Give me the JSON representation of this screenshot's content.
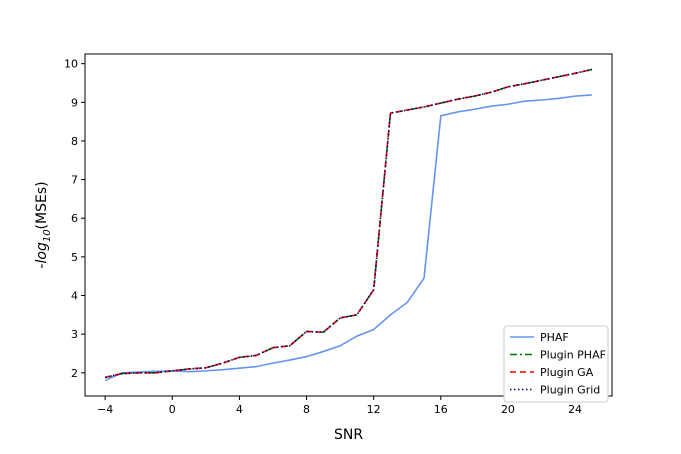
{
  "chart_data": {
    "type": "line",
    "title": "",
    "xlabel": "SNR",
    "ylabel_prefix": "-",
    "ylabel_log": "log",
    "ylabel_sub": "10",
    "ylabel_suffix": "(MSEs)",
    "xlim": [
      -5.2,
      26.2
    ],
    "ylim": [
      1.4,
      10.25
    ],
    "xticks": [
      -4,
      0,
      4,
      8,
      12,
      16,
      20,
      24
    ],
    "xtick_labels": [
      "−4",
      "0",
      "4",
      "8",
      "12",
      "16",
      "20",
      "24"
    ],
    "yticks": [
      2,
      3,
      4,
      5,
      6,
      7,
      8,
      9,
      10
    ],
    "ytick_labels": [
      "2",
      "3",
      "4",
      "5",
      "6",
      "7",
      "8",
      "9",
      "10"
    ],
    "legend_position": "lower-right",
    "grid": false,
    "x": [
      -4,
      -3,
      -2,
      -1,
      0,
      1,
      2,
      3,
      4,
      5,
      6,
      7,
      8,
      9,
      10,
      11,
      12,
      13,
      14,
      15,
      16,
      17,
      18,
      19,
      20,
      21,
      22,
      23,
      24,
      25
    ],
    "series": [
      {
        "name": "PHAF",
        "color": "#6495ED",
        "style": "solid",
        "values": [
          1.8,
          2.0,
          2.02,
          2.04,
          2.05,
          2.03,
          2.05,
          2.08,
          2.12,
          2.16,
          2.25,
          2.33,
          2.42,
          2.55,
          2.7,
          2.95,
          3.12,
          3.5,
          3.82,
          4.45,
          8.65,
          8.75,
          8.82,
          8.9,
          8.95,
          9.03,
          9.06,
          9.1,
          9.16,
          9.19
        ]
      },
      {
        "name": "Plugin PHAF",
        "color": "#007500",
        "style": "dashdot",
        "values": [
          1.88,
          1.98,
          2.0,
          2.0,
          2.05,
          2.1,
          2.13,
          2.25,
          2.4,
          2.45,
          2.65,
          2.7,
          3.07,
          3.05,
          3.42,
          3.5,
          4.15,
          8.72,
          8.8,
          8.88,
          8.98,
          9.08,
          9.16,
          9.26,
          9.4,
          9.48,
          9.57,
          9.66,
          9.75,
          9.85
        ]
      },
      {
        "name": "Plugin GA",
        "color": "#ff0000",
        "style": "dashed",
        "values": [
          1.88,
          1.98,
          2.0,
          2.0,
          2.05,
          2.1,
          2.13,
          2.25,
          2.4,
          2.45,
          2.65,
          2.7,
          3.07,
          3.05,
          3.42,
          3.5,
          4.15,
          8.72,
          8.8,
          8.88,
          8.98,
          9.08,
          9.16,
          9.26,
          9.4,
          9.48,
          9.57,
          9.66,
          9.75,
          9.85
        ]
      },
      {
        "name": "Plugin Grid",
        "color": "#000080",
        "style": "dotted",
        "values": [
          1.88,
          1.98,
          2.0,
          2.0,
          2.05,
          2.1,
          2.13,
          2.25,
          2.4,
          2.45,
          2.65,
          2.7,
          3.07,
          3.05,
          3.42,
          3.5,
          4.15,
          8.72,
          8.8,
          8.88,
          8.98,
          9.08,
          9.16,
          9.26,
          9.4,
          9.48,
          9.57,
          9.66,
          9.75,
          9.85
        ]
      }
    ]
  }
}
